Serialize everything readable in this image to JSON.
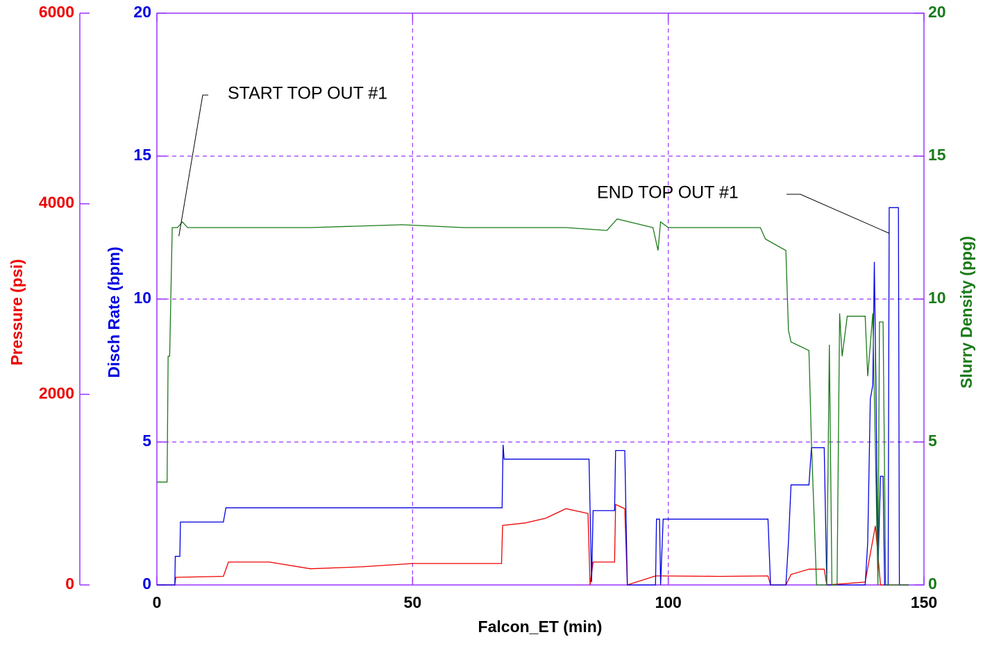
{
  "chart_data": {
    "type": "line",
    "xlabel": "Falcon_ET (min)",
    "ylabel": "Disch Rate (bpm)",
    "y2label": "Slurry Density (ppg)",
    "y3label": "Pressure (psi)",
    "xlim": [
      0,
      150
    ],
    "xticks": [
      0,
      50,
      100,
      150
    ],
    "ylim": [
      0,
      20
    ],
    "yticks": [
      0,
      5,
      10,
      15,
      20
    ],
    "y2lim": [
      0,
      20
    ],
    "y2ticks": [
      0,
      5,
      10,
      15,
      20
    ],
    "y3lim": [
      0,
      6000
    ],
    "y3ticks": [
      0,
      2000,
      4000,
      6000
    ],
    "grid": true,
    "axis_color": "#9933ff",
    "ylabel_color": "#0000e0",
    "y2label_color": "#1a7a1a",
    "y3label_color": "#ee0000",
    "annotations": [
      {
        "text": "START TOP OUT #1",
        "x": 4.3,
        "y": 12.2
      },
      {
        "text": "END TOP OUT #1",
        "x": 143.2,
        "y": 12.3
      }
    ],
    "series": [
      {
        "name": "Pressure",
        "color": "#ee0000",
        "axis": "y3",
        "x": [
          0,
          3.5,
          3.7,
          13,
          14,
          22,
          30,
          40,
          50,
          60,
          67.4,
          67.6,
          72,
          76,
          80,
          84.3,
          84.7,
          85.3,
          89.5,
          89.7,
          91.5,
          92,
          97.5,
          98.5,
          110,
          119.5,
          120,
          123,
          124,
          127.5,
          130.5,
          131,
          138.5,
          140.5,
          141.5,
          147
        ],
        "values": [
          0,
          0,
          80,
          90,
          240,
          240,
          170,
          190,
          225,
          225,
          225,
          625,
          650,
          700,
          800,
          750,
          0,
          240,
          240,
          845,
          800,
          0,
          95,
          95,
          90,
          95,
          0,
          0,
          110,
          165,
          165,
          0,
          30,
          620,
          0,
          0
        ]
      },
      {
        "name": "Disch Rate",
        "color": "#0000e0",
        "axis": "y",
        "x": [
          0,
          3.5,
          3.6,
          4.5,
          4.6,
          13,
          13.5,
          67.5,
          67.7,
          67.9,
          84.5,
          85,
          85.3,
          89.5,
          89.7,
          91.5,
          92,
          97.5,
          97.7,
          98.3,
          98.5,
          99,
          119.5,
          120,
          123,
          123.5,
          124,
          127.5,
          128,
          130.5,
          131,
          138.5,
          139,
          139.5,
          140,
          140.3,
          140.6,
          141,
          141.5,
          142,
          142.3,
          143,
          143.2,
          145,
          145.2,
          147
        ],
        "values": [
          0,
          0,
          1,
          1,
          2.2,
          2.2,
          2.7,
          2.7,
          4.9,
          4.4,
          4.4,
          0.1,
          2.6,
          2.6,
          4.7,
          4.7,
          0,
          0,
          2.3,
          2.3,
          0,
          2.3,
          2.3,
          0,
          0,
          1.5,
          3.5,
          3.5,
          4.8,
          4.8,
          0,
          0,
          1.5,
          6.5,
          7,
          11.3,
          7,
          0.5,
          3.8,
          3.8,
          0,
          0,
          13.2,
          13.2,
          0,
          0
        ]
      },
      {
        "name": "Slurry Density",
        "color": "#1a7a1a",
        "axis": "y2",
        "x": [
          0,
          2,
          2.2,
          2.5,
          3,
          4,
          5,
          6,
          15,
          30,
          48,
          60,
          80,
          88,
          90,
          97,
          98,
          98.5,
          100,
          118,
          119,
          123,
          123.5,
          124,
          127.5,
          128,
          129,
          131,
          131.5,
          132,
          133,
          133.5,
          134,
          135,
          138.5,
          139,
          140,
          141,
          141.3,
          142,
          142.5,
          147
        ],
        "values": [
          3.6,
          3.6,
          8,
          8,
          12.5,
          12.5,
          12.7,
          12.5,
          12.5,
          12.5,
          12.6,
          12.5,
          12.5,
          12.4,
          12.8,
          12.5,
          11.7,
          12.7,
          12.5,
          12.5,
          12.1,
          11.7,
          8.9,
          8.5,
          8.2,
          5,
          0,
          0,
          8.4,
          0,
          0,
          9.5,
          8,
          9.4,
          9.4,
          7.3,
          9.5,
          0,
          9.2,
          9.2,
          0,
          0
        ]
      }
    ]
  }
}
